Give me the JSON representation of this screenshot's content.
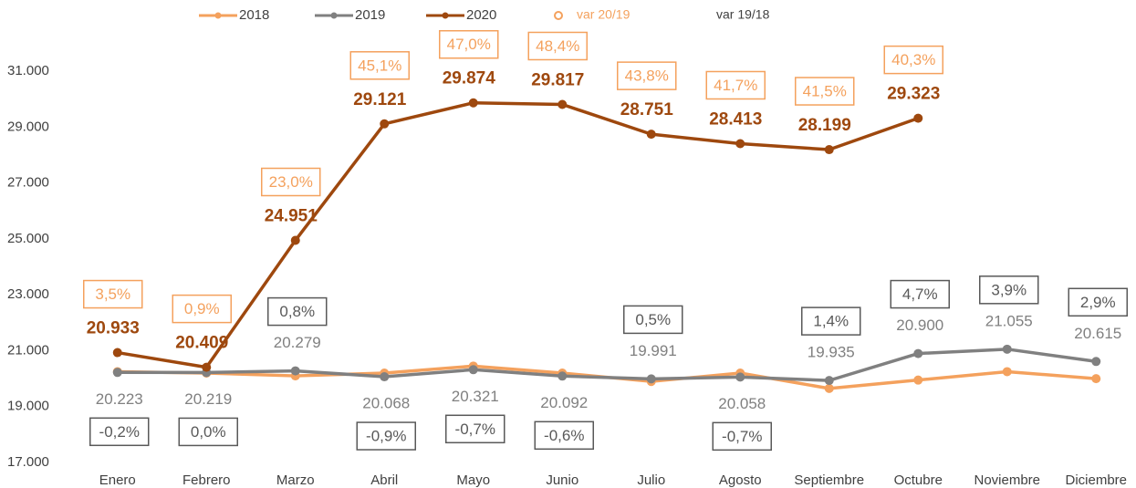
{
  "chart_data": {
    "type": "line",
    "categories": [
      "Enero",
      "Febrero",
      "Marzo",
      "Abril",
      "Mayo",
      "Junio",
      "Julio",
      "Agosto",
      "Septiembre",
      "Octubre",
      "Noviembre",
      "Diciembre"
    ],
    "ylim": [
      17000,
      33000
    ],
    "yticks": [
      {
        "value": 17000,
        "label": "17.000"
      },
      {
        "value": 19000,
        "label": "19.000"
      },
      {
        "value": 21000,
        "label": "21.000"
      },
      {
        "value": 23000,
        "label": "23.000"
      },
      {
        "value": 25000,
        "label": "25.000"
      },
      {
        "value": 27000,
        "label": "27.000"
      },
      {
        "value": 29000,
        "label": "29.000"
      },
      {
        "value": 31000,
        "label": "31.000"
      }
    ],
    "grid": false,
    "legend": "top",
    "series": [
      {
        "name": "2018",
        "color": "#f4a15d",
        "values": [
          20250,
          20200,
          20100,
          20200,
          20450,
          20200,
          19900,
          20200,
          19650,
          19950,
          20250,
          20000
        ]
      },
      {
        "name": "2019",
        "color": "#808080",
        "values": [
          20223,
          20219,
          20279,
          20068,
          20321,
          20092,
          19991,
          20058,
          19935,
          20900,
          21055,
          20615
        ],
        "value_labels": [
          "20.223",
          "20.219",
          "20.279",
          "20.068",
          "20.321",
          "20.092",
          "19.991",
          "20.058",
          "19.935",
          "20.900",
          "21.055",
          "20.615"
        ]
      },
      {
        "name": "2020",
        "color": "#9e480e",
        "values": [
          20933,
          20409,
          24951,
          29121,
          29874,
          29817,
          28751,
          28413,
          28199,
          29323,
          null,
          null
        ],
        "value_labels": [
          "20.933",
          "20.409",
          "24.951",
          "29.121",
          "29.874",
          "29.817",
          "28.751",
          "28.413",
          "28.199",
          "29.323",
          null,
          null
        ]
      },
      {
        "name": "var 20/19",
        "color": "#f4a15d",
        "values": [
          3.5,
          0.9,
          23.0,
          45.1,
          47.0,
          48.4,
          43.8,
          41.7,
          41.5,
          40.3,
          null,
          null
        ],
        "value_labels": [
          "3,5%",
          "0,9%",
          "23,0%",
          "45,1%",
          "47,0%",
          "48,4%",
          "43,8%",
          "41,7%",
          "41,5%",
          "40,3%",
          null,
          null
        ]
      },
      {
        "name": "var 19/18",
        "color": "#595959",
        "values": [
          -0.2,
          0.0,
          0.8,
          -0.9,
          -0.7,
          -0.6,
          0.5,
          -0.7,
          1.4,
          4.7,
          3.9,
          2.9
        ],
        "value_labels": [
          "-0,2%",
          "0,0%",
          "0,8%",
          "-0,9%",
          "-0,7%",
          "-0,6%",
          "0,5%",
          "-0,7%",
          "1,4%",
          "4,7%",
          "3,9%",
          "2,9%"
        ]
      }
    ]
  }
}
